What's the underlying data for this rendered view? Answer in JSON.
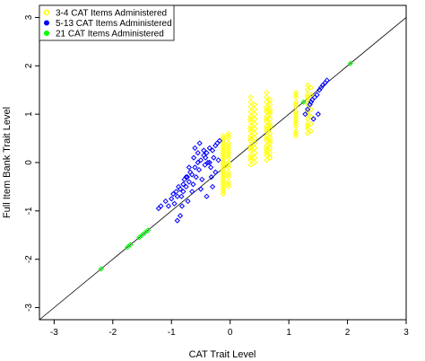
{
  "chart_data": {
    "type": "scatter",
    "xlabel": "CAT Trait Level",
    "ylabel": "Full Item Bank Trait Level",
    "xlim": [
      -3.25,
      3.0
    ],
    "ylim": [
      -3.25,
      3.25
    ],
    "xticks": [
      -3,
      -2,
      -1,
      0,
      1,
      2,
      3
    ],
    "yticks": [
      -3,
      -2,
      -1,
      0,
      1,
      2,
      3
    ],
    "grid": false,
    "identity_line": true,
    "legend": {
      "position": "top-left",
      "entries": [
        {
          "label": "3-4 CAT Items Administered",
          "color": "#FFFF00"
        },
        {
          "label": "5-13 CAT Items Administered",
          "color": "#0000FF"
        },
        {
          "label": "21 CAT Items Administered",
          "color": "#00FF00"
        }
      ]
    },
    "series": [
      {
        "name": "3-4 CAT Items Administered",
        "color": "#FFFF00",
        "x": [
          -0.12,
          -0.12,
          -0.12,
          -0.12,
          -0.12,
          -0.12,
          -0.12,
          -0.12,
          -0.12,
          -0.12,
          -0.12,
          -0.12,
          -0.12,
          -0.12,
          -0.12,
          -0.12,
          -0.12,
          -0.12,
          -0.12,
          -0.12,
          -0.12,
          -0.12,
          -0.12,
          -0.12,
          -0.12,
          -0.03,
          -0.03,
          -0.03,
          -0.03,
          -0.03,
          -0.03,
          -0.03,
          -0.03,
          -0.03,
          -0.03,
          -0.03,
          -0.03,
          -0.03,
          -0.03,
          -0.03,
          -0.03,
          -0.03,
          -0.03,
          -0.03,
          -0.03,
          0.35,
          0.35,
          0.35,
          0.35,
          0.35,
          0.35,
          0.35,
          0.35,
          0.35,
          0.35,
          0.35,
          0.35,
          0.35,
          0.35,
          0.35,
          0.35,
          0.35,
          0.35,
          0.35,
          0.35,
          0.42,
          0.42,
          0.42,
          0.42,
          0.42,
          0.42,
          0.42,
          0.42,
          0.42,
          0.42,
          0.42,
          0.42,
          0.42,
          0.42,
          0.42,
          0.62,
          0.62,
          0.62,
          0.62,
          0.62,
          0.62,
          0.62,
          0.62,
          0.62,
          0.62,
          0.62,
          0.62,
          0.62,
          0.62,
          0.62,
          0.62,
          0.62,
          0.62,
          0.62,
          0.62,
          0.62,
          0.68,
          0.68,
          0.68,
          0.68,
          0.68,
          0.68,
          0.68,
          0.68,
          0.68,
          0.68,
          0.68,
          0.68,
          0.68,
          0.68,
          0.68,
          0.68,
          1.12,
          1.12,
          1.12,
          1.12,
          1.12,
          1.12,
          1.12,
          1.12,
          1.12,
          1.12,
          1.12,
          1.12,
          1.12,
          1.12,
          1.12,
          1.12,
          1.32,
          1.32,
          1.32,
          1.32,
          1.32,
          1.32,
          1.32,
          1.32,
          1.32,
          1.32,
          1.32,
          1.32,
          1.32,
          1.32,
          1.38,
          1.38,
          1.38,
          1.38,
          1.38,
          1.38,
          1.38
        ],
        "y": [
          -0.65,
          -0.55,
          -0.45,
          -0.35,
          -0.25,
          -0.15,
          -0.05,
          0.05,
          0.15,
          0.25,
          0.35,
          0.45,
          0.55,
          -0.6,
          -0.5,
          -0.4,
          -0.3,
          -0.2,
          -0.1,
          0.0,
          0.1,
          0.2,
          0.3,
          0.4,
          0.5,
          -0.5,
          -0.4,
          -0.3,
          -0.2,
          -0.1,
          0.0,
          0.1,
          0.2,
          0.3,
          0.4,
          0.5,
          0.6,
          -0.45,
          -0.25,
          -0.05,
          0.15,
          0.35,
          0.55,
          0.0,
          0.25,
          -0.05,
          0.05,
          0.15,
          0.25,
          0.35,
          0.45,
          0.55,
          0.65,
          0.75,
          0.85,
          0.95,
          1.05,
          1.15,
          1.25,
          1.35,
          0.1,
          0.3,
          0.5,
          0.7,
          0.9,
          0.0,
          0.2,
          0.4,
          0.6,
          0.8,
          1.0,
          1.2,
          0.1,
          0.3,
          0.5,
          0.7,
          0.9,
          1.1,
          0.6,
          0.8,
          0.05,
          0.15,
          0.25,
          0.35,
          0.45,
          0.55,
          0.65,
          0.75,
          0.85,
          0.95,
          1.05,
          1.15,
          1.25,
          1.35,
          1.45,
          0.3,
          0.5,
          0.7,
          0.9,
          1.1,
          0.2,
          0.1,
          0.2,
          0.3,
          0.4,
          0.5,
          0.6,
          0.7,
          0.8,
          0.9,
          1.0,
          1.1,
          1.2,
          1.3,
          0.45,
          0.75,
          1.05,
          0.55,
          0.65,
          0.75,
          0.85,
          0.95,
          1.05,
          1.15,
          1.25,
          1.35,
          1.45,
          0.6,
          0.8,
          1.0,
          1.2,
          1.4,
          0.9,
          0.6,
          0.7,
          0.8,
          0.9,
          1.0,
          1.1,
          1.2,
          1.3,
          1.4,
          1.5,
          1.6,
          0.75,
          1.05,
          1.35,
          0.65,
          0.8,
          0.95,
          1.1,
          1.25,
          1.4,
          1.55
        ]
      },
      {
        "name": "5-13 CAT Items Administered",
        "color": "#0000FF",
        "x": [
          -1.22,
          -1.18,
          -1.1,
          -1.05,
          -1.0,
          -0.97,
          -0.95,
          -0.92,
          -0.9,
          -0.88,
          -0.85,
          -0.83,
          -0.8,
          -0.78,
          -0.75,
          -0.73,
          -0.7,
          -0.68,
          -0.65,
          -0.63,
          -0.6,
          -0.58,
          -0.55,
          -0.53,
          -0.5,
          -0.48,
          -0.45,
          -0.43,
          -0.4,
          -0.38,
          -0.35,
          -0.33,
          -0.3,
          -0.28,
          -0.25,
          -0.22,
          -0.2,
          -0.18,
          -0.9,
          -0.85,
          -0.8,
          -0.75,
          -0.7,
          -0.65,
          -0.6,
          -0.55,
          -0.5,
          -0.45,
          -0.4,
          -0.35,
          -0.3,
          -0.25,
          -0.62,
          -0.52,
          -0.42,
          -0.32,
          -0.72,
          -0.82,
          1.28,
          1.32,
          1.36,
          1.4,
          1.44,
          1.48,
          1.52,
          1.55,
          1.58,
          1.62,
          1.65,
          1.42,
          1.5,
          1.38
        ],
        "y": [
          -0.95,
          -0.9,
          -0.8,
          -0.9,
          -0.75,
          -0.65,
          -0.85,
          -0.6,
          -0.7,
          -0.5,
          -0.55,
          -0.7,
          -0.45,
          -0.35,
          -0.5,
          -0.3,
          -0.4,
          -0.2,
          -0.25,
          -0.45,
          -0.1,
          -0.3,
          0.0,
          -0.15,
          0.05,
          -0.35,
          0.15,
          -0.05,
          0.2,
          0.0,
          0.3,
          -0.1,
          0.25,
          0.1,
          0.35,
          0.4,
          0.05,
          0.45,
          -1.2,
          -1.1,
          -0.6,
          -0.3,
          -0.1,
          -0.6,
          0.3,
          0.2,
          -0.55,
          0.25,
          -0.7,
          0.0,
          -0.5,
          -0.2,
          0.1,
          0.4,
          0.1,
          -0.3,
          -0.8,
          -0.9,
          1.0,
          1.1,
          1.2,
          1.3,
          1.35,
          1.4,
          1.5,
          1.55,
          1.6,
          1.65,
          1.7,
          0.9,
          1.0,
          1.25
        ]
      },
      {
        "name": "21 CAT Items Administered",
        "color": "#00FF00",
        "x": [
          -2.2,
          -1.75,
          -1.7,
          -1.55,
          -1.5,
          -1.45,
          -1.4,
          1.25,
          2.05
        ],
        "y": [
          -2.2,
          -1.75,
          -1.7,
          -1.55,
          -1.5,
          -1.45,
          -1.4,
          1.25,
          2.05
        ]
      }
    ]
  }
}
